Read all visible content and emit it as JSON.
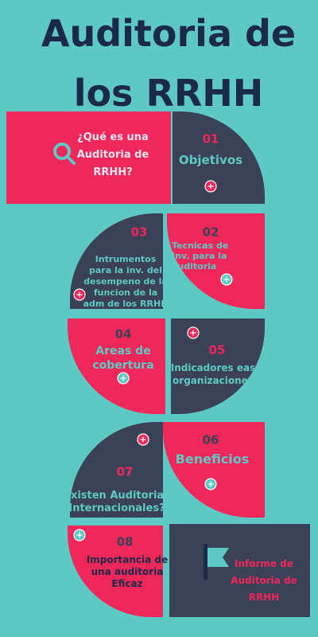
{
  "title_lines": [
    "Auditoria de",
    "los RRHH"
  ],
  "intro": {
    "lines": [
      "¿Qué es una",
      "Auditoria de",
      "RRHH?"
    ]
  },
  "sections": [
    {
      "number": "01",
      "lines": [
        "Objetivos"
      ]
    },
    {
      "number": "02",
      "lines": [
        "Tecnicas de",
        "Inv. para la",
        "auditoria"
      ]
    },
    {
      "number": "03",
      "lines": [
        "Intrumentos",
        "para la inv. del",
        "desempeno de la",
        "funcion de la",
        "adm de los RRHH"
      ]
    },
    {
      "number": "04",
      "lines": [
        "Areas de",
        "cobertura"
      ]
    },
    {
      "number": "05",
      "lines": [
        "Indicadores eas",
        "organizaciones"
      ]
    },
    {
      "number": "06",
      "lines": [
        "Beneficios"
      ]
    },
    {
      "number": "07",
      "lines": [
        "Existen Auditorias",
        "Internacionales?"
      ]
    },
    {
      "number": "08",
      "lines": [
        "Importancia de",
        "una auditoria",
        "Eficaz"
      ]
    }
  ],
  "footer": {
    "lines": [
      "Informe de",
      "Auditoria de",
      "RRHH"
    ]
  }
}
